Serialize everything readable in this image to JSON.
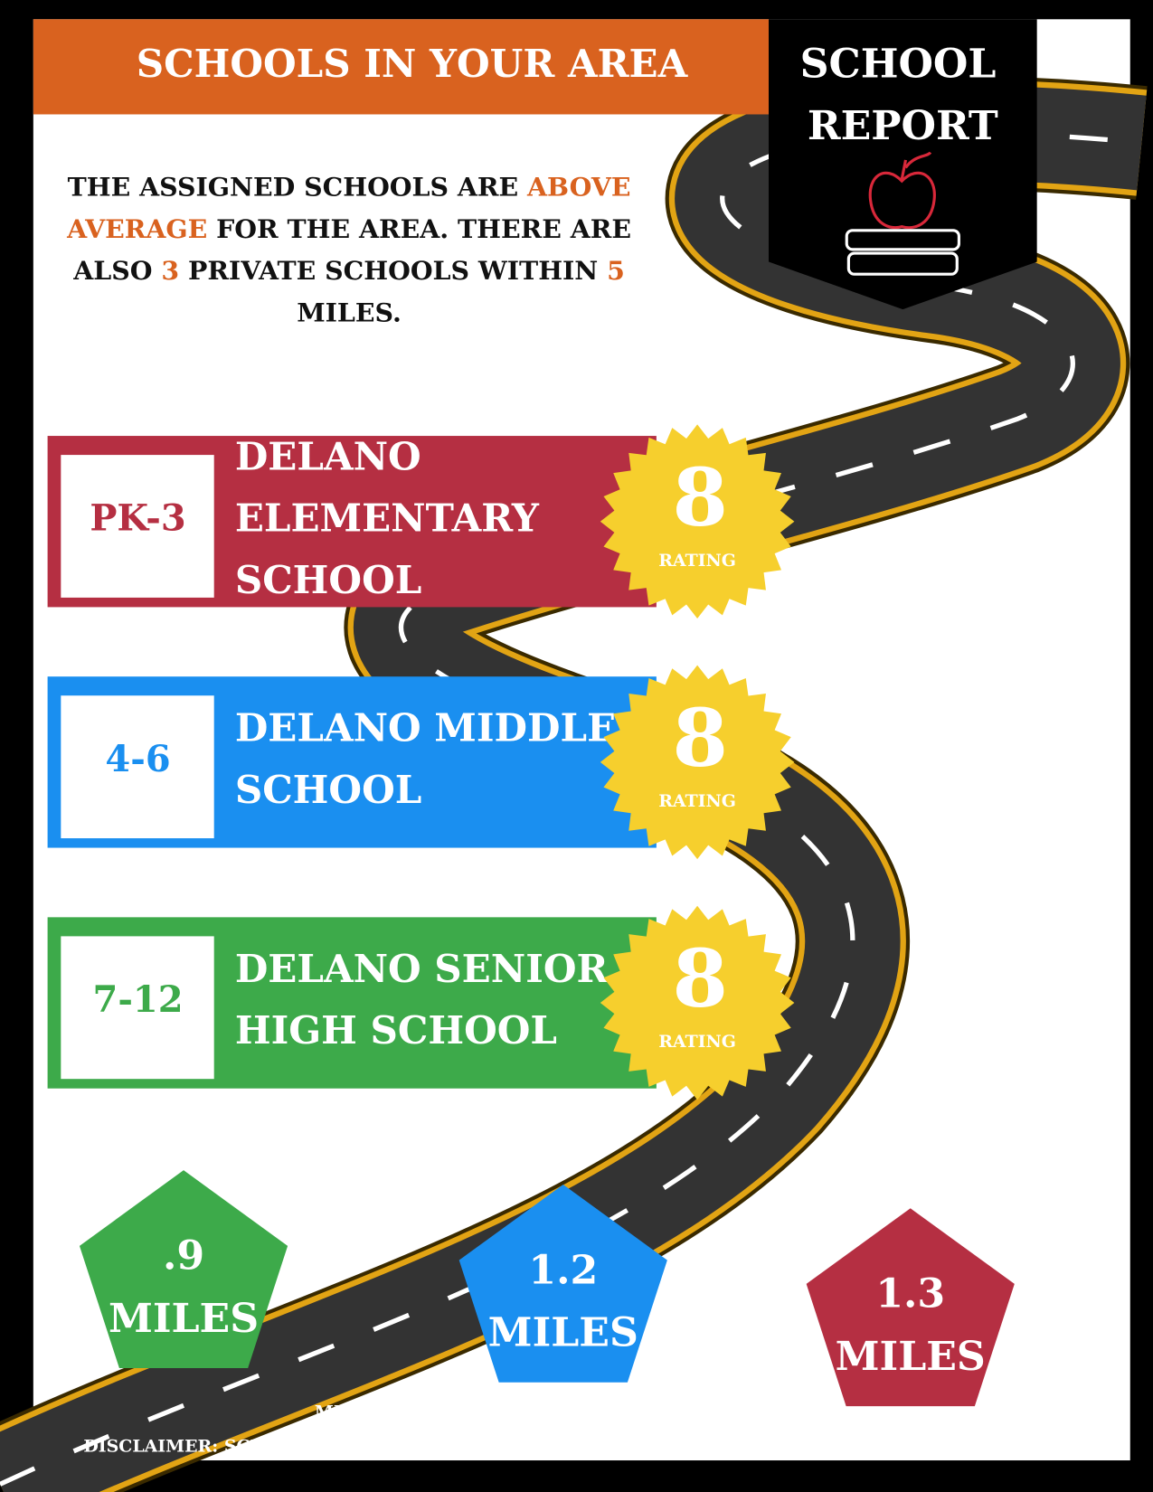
{
  "header": {
    "title": "SCHOOLS IN YOUR AREA",
    "badge": [
      "SCHOOL",
      "REPORT"
    ]
  },
  "intro": {
    "lines": [
      [
        {
          "text": "THE ASSIGNED SCHOOLS ARE ",
          "color": "#111111"
        },
        {
          "text": "ABOVE",
          "color": "#d9621f"
        }
      ],
      [
        {
          "text": "AVERAGE",
          "color": "#d9621f"
        },
        {
          "text": " FOR THE AREA. THERE ARE",
          "color": "#111111"
        }
      ],
      [
        {
          "text": "ALSO ",
          "color": "#111111"
        },
        {
          "text": "3",
          "color": "#d9621f"
        },
        {
          "text": " PRIVATE SCHOOLS WITHIN ",
          "color": "#111111"
        },
        {
          "text": "5",
          "color": "#d9621f"
        }
      ],
      [
        {
          "text": "MILES.",
          "color": "#111111"
        }
      ]
    ]
  },
  "schools": [
    {
      "grades": "PK-3",
      "name": [
        "DELANO",
        "ELEMENTARY",
        "SCHOOL"
      ],
      "rating": "8",
      "rating_label": "RATING",
      "color": "#b52f42"
    },
    {
      "grades": "4-6",
      "name": [
        "DELANO MIDDLE",
        "SCHOOL"
      ],
      "rating": "8",
      "rating_label": "RATING",
      "color": "#1a8ff0"
    },
    {
      "grades": "7-12",
      "name": [
        "DELANO SENIOR",
        "HIGH SCHOOL"
      ],
      "rating": "8",
      "rating_label": "RATING",
      "color": "#3daa4a"
    }
  ],
  "distances": [
    {
      "value": ".9",
      "unit": "MILES",
      "color": "#3daa4a"
    },
    {
      "value": "1.2",
      "unit": "MILES",
      "color": "#1a8ff0"
    },
    {
      "value": "1.3",
      "unit": "MILES",
      "color": "#b52f42"
    }
  ],
  "footer": {
    "note": "MILES TO SCHOOL IS FROM THE CENTER OF TOWN",
    "disclaimer": "DISCLAIMER: SCHOOL DATA IS PROVIDED BY GREAT SCHOOLS. INTENDED FOR REFERENCE ONLY."
  }
}
